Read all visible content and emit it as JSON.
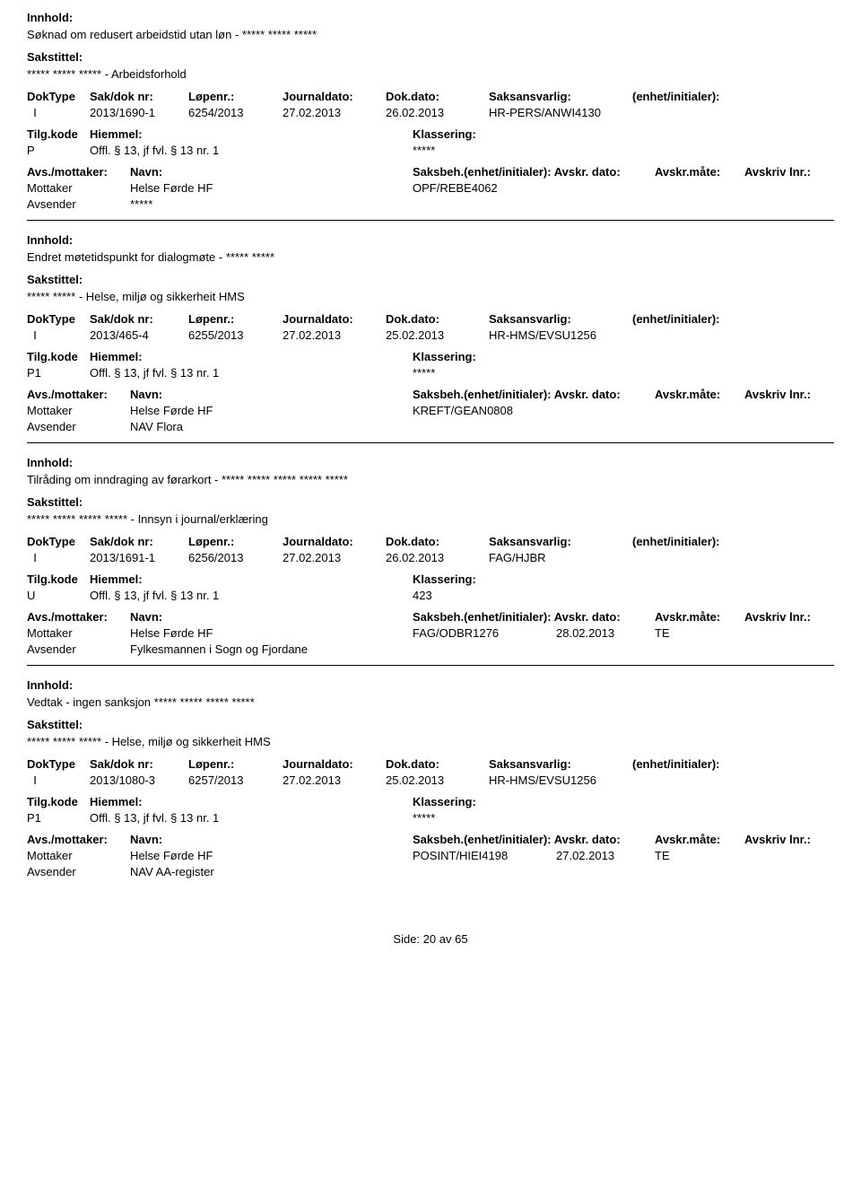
{
  "labels": {
    "innhold": "Innhold:",
    "sakstittel": "Sakstittel:",
    "doktype": "DokType",
    "sakdok": "Sak/dok nr:",
    "lopenr": "Løpenr.:",
    "journaldato": "Journaldato:",
    "dokdato": "Dok.dato:",
    "saksansvarlig": "Saksansvarlig:",
    "enhet": "(enhet/initialer):",
    "tilgkode": "Tilg.kode",
    "hjemmel": "Hiemmel:",
    "klassering": "Klassering:",
    "avsmottaker": "Avs./mottaker:",
    "navn": "Navn:",
    "saksbeh_full": "Saksbeh.(enhet/initialer): Avskr. dato:",
    "avskr_mate": "Avskr.måte:",
    "avskriv_lnr": "Avskriv lnr.:",
    "side": "Side:",
    "av": "av"
  },
  "footer": {
    "page": "20",
    "total": "65"
  },
  "records": [
    {
      "innhold": "Søknad om redusert arbeidstid utan løn - ***** ***** *****",
      "sakstittel": "***** ***** ***** - Arbeidsforhold",
      "doktype": "I",
      "sakdok": "2013/1690-1",
      "lopenr": "6254/2013",
      "jdato": "27.02.2013",
      "ddato": "26.02.2013",
      "saksansvarlig": "HR-PERS/ANWI4130",
      "tilgkode": "P",
      "hjemmel": "Offl. § 13, jf fvl. § 13 nr. 1",
      "klassering": "*****",
      "parties": [
        {
          "role": "Mottaker",
          "navn": "Helse Førde HF",
          "saksbeh": "OPF/REBE4062",
          "avdato": "",
          "avmate": ""
        },
        {
          "role": "Avsender",
          "navn": "*****",
          "saksbeh": "",
          "avdato": "",
          "avmate": ""
        }
      ]
    },
    {
      "innhold": "Endret møtetidspunkt for dialogmøte - ***** *****",
      "sakstittel": "***** ***** - Helse, miljø og sikkerheit HMS",
      "doktype": "I",
      "sakdok": "2013/465-4",
      "lopenr": "6255/2013",
      "jdato": "27.02.2013",
      "ddato": "25.02.2013",
      "saksansvarlig": "HR-HMS/EVSU1256",
      "tilgkode": "P1",
      "hjemmel": "Offl. § 13, jf fvl. § 13 nr. 1",
      "klassering": "*****",
      "parties": [
        {
          "role": "Mottaker",
          "navn": "Helse Førde HF",
          "saksbeh": "KREFT/GEAN0808",
          "avdato": "",
          "avmate": ""
        },
        {
          "role": "Avsender",
          "navn": "NAV Flora",
          "saksbeh": "",
          "avdato": "",
          "avmate": ""
        }
      ]
    },
    {
      "innhold": "Tilråding om inndraging av førarkort - ***** ***** ***** ***** *****",
      "sakstittel": "***** ***** ***** ***** - Innsyn i journal/erklæring",
      "doktype": "I",
      "sakdok": "2013/1691-1",
      "lopenr": "6256/2013",
      "jdato": "27.02.2013",
      "ddato": "26.02.2013",
      "saksansvarlig": "FAG/HJBR",
      "tilgkode": "U",
      "hjemmel": "Offl. § 13, jf fvl. § 13 nr. 1",
      "klassering": "423",
      "parties": [
        {
          "role": "Mottaker",
          "navn": "Helse Førde HF",
          "saksbeh": "FAG/ODBR1276",
          "avdato": "28.02.2013",
          "avmate": "TE"
        },
        {
          "role": "Avsender",
          "navn": "Fylkesmannen i Sogn og Fjordane",
          "saksbeh": "",
          "avdato": "",
          "avmate": ""
        }
      ]
    },
    {
      "innhold": "Vedtak - ingen sanksjon ***** ***** ***** *****",
      "sakstittel": "***** ***** ***** - Helse, miljø og sikkerheit HMS",
      "doktype": "I",
      "sakdok": "2013/1080-3",
      "lopenr": "6257/2013",
      "jdato": "27.02.2013",
      "ddato": "25.02.2013",
      "saksansvarlig": "HR-HMS/EVSU1256",
      "tilgkode": "P1",
      "hjemmel": "Offl. § 13, jf fvl. § 13 nr. 1",
      "klassering": "*****",
      "parties": [
        {
          "role": "Mottaker",
          "navn": "Helse Førde HF",
          "saksbeh": "POSINT/HIEI4198",
          "avdato": "27.02.2013",
          "avmate": "TE"
        },
        {
          "role": "Avsender",
          "navn": "NAV AA-register",
          "saksbeh": "",
          "avdato": "",
          "avmate": ""
        }
      ]
    }
  ]
}
